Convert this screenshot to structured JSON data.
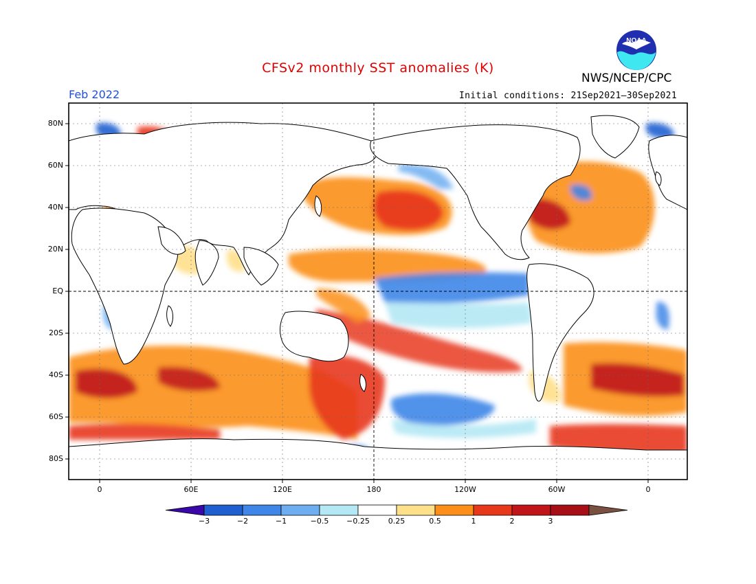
{
  "header": {
    "title": "CFSv2 monthly SST anomalies (K)",
    "agency": "NWS/NCEP/CPC",
    "logo_text": "NOAA",
    "month": "Feb 2022",
    "initial_conditions": "Initial conditions: 21Sep2021—30Sep2021"
  },
  "axes": {
    "lat_labels": [
      "80N",
      "60N",
      "40N",
      "20N",
      "EQ",
      "20S",
      "40S",
      "60S",
      "80S"
    ],
    "lon_labels": [
      "0",
      "60E",
      "120E",
      "180",
      "120W",
      "60W",
      "0"
    ]
  },
  "colorbar": {
    "tick_labels": [
      "−3",
      "−2",
      "−1",
      "−0.5",
      "−0.25",
      "0.25",
      "0.5",
      "1",
      "2",
      "3"
    ],
    "colors": [
      "#3a08a8",
      "#1f5fd0",
      "#3f86e8",
      "#6eaef0",
      "#b4e8f4",
      "#ffffff",
      "#fee08b",
      "#fb8f1a",
      "#e8381c",
      "#c0151b",
      "#a50f15",
      "#7a5040"
    ],
    "units": "K"
  },
  "colors": {
    "title": "#e00000",
    "month": "#1f4fe0",
    "land": "#ffffff",
    "coast": "#000000",
    "grid": "#666666"
  }
}
